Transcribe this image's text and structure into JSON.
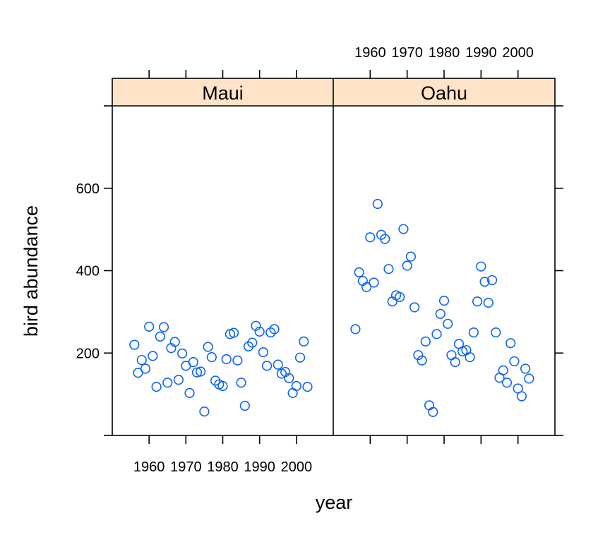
{
  "chart_data": {
    "type": "scatter",
    "xlabel": "year",
    "ylabel": "bird abundance",
    "xlim": [
      1950,
      2010
    ],
    "ylim": [
      0,
      800
    ],
    "x_ticks": [
      1960,
      1970,
      1980,
      1990,
      2000
    ],
    "y_ticks": [
      200,
      400,
      600
    ],
    "colors": {
      "point": "#0a64f0",
      "strip": "#ffe3c8",
      "frame": "#000000"
    },
    "panels": [
      {
        "name": "Maui",
        "points": [
          {
            "x": 1956,
            "y": 220
          },
          {
            "x": 1957,
            "y": 152
          },
          {
            "x": 1958,
            "y": 183
          },
          {
            "x": 1959,
            "y": 162
          },
          {
            "x": 1960,
            "y": 264
          },
          {
            "x": 1961,
            "y": 193
          },
          {
            "x": 1962,
            "y": 118
          },
          {
            "x": 1963,
            "y": 240
          },
          {
            "x": 1964,
            "y": 263
          },
          {
            "x": 1965,
            "y": 128
          },
          {
            "x": 1966,
            "y": 212
          },
          {
            "x": 1967,
            "y": 227
          },
          {
            "x": 1968,
            "y": 135
          },
          {
            "x": 1969,
            "y": 199
          },
          {
            "x": 1970,
            "y": 169
          },
          {
            "x": 1971,
            "y": 103
          },
          {
            "x": 1972,
            "y": 178
          },
          {
            "x": 1973,
            "y": 153
          },
          {
            "x": 1974,
            "y": 155
          },
          {
            "x": 1975,
            "y": 58
          },
          {
            "x": 1976,
            "y": 215
          },
          {
            "x": 1977,
            "y": 190
          },
          {
            "x": 1978,
            "y": 133
          },
          {
            "x": 1979,
            "y": 124
          },
          {
            "x": 1980,
            "y": 120
          },
          {
            "x": 1981,
            "y": 185
          },
          {
            "x": 1982,
            "y": 246
          },
          {
            "x": 1983,
            "y": 249
          },
          {
            "x": 1984,
            "y": 182
          },
          {
            "x": 1985,
            "y": 128
          },
          {
            "x": 1986,
            "y": 72
          },
          {
            "x": 1987,
            "y": 216
          },
          {
            "x": 1988,
            "y": 225
          },
          {
            "x": 1989,
            "y": 266
          },
          {
            "x": 1990,
            "y": 252
          },
          {
            "x": 1991,
            "y": 202
          },
          {
            "x": 1992,
            "y": 169
          },
          {
            "x": 1993,
            "y": 250
          },
          {
            "x": 1994,
            "y": 258
          },
          {
            "x": 1995,
            "y": 172
          },
          {
            "x": 1996,
            "y": 150
          },
          {
            "x": 1997,
            "y": 154
          },
          {
            "x": 1998,
            "y": 139
          },
          {
            "x": 1999,
            "y": 103
          },
          {
            "x": 2000,
            "y": 120
          },
          {
            "x": 2001,
            "y": 189
          },
          {
            "x": 2002,
            "y": 228
          },
          {
            "x": 2003,
            "y": 118
          }
        ]
      },
      {
        "name": "Oahu",
        "points": [
          {
            "x": 1956,
            "y": 258
          },
          {
            "x": 1957,
            "y": 396
          },
          {
            "x": 1958,
            "y": 375
          },
          {
            "x": 1959,
            "y": 360
          },
          {
            "x": 1960,
            "y": 481
          },
          {
            "x": 1961,
            "y": 371
          },
          {
            "x": 1962,
            "y": 562
          },
          {
            "x": 1963,
            "y": 487
          },
          {
            "x": 1964,
            "y": 477
          },
          {
            "x": 1965,
            "y": 404
          },
          {
            "x": 1966,
            "y": 325
          },
          {
            "x": 1967,
            "y": 340
          },
          {
            "x": 1968,
            "y": 336
          },
          {
            "x": 1969,
            "y": 501
          },
          {
            "x": 1970,
            "y": 412
          },
          {
            "x": 1971,
            "y": 434
          },
          {
            "x": 1972,
            "y": 311
          },
          {
            "x": 1973,
            "y": 195
          },
          {
            "x": 1974,
            "y": 182
          },
          {
            "x": 1975,
            "y": 228
          },
          {
            "x": 1976,
            "y": 73
          },
          {
            "x": 1977,
            "y": 57
          },
          {
            "x": 1978,
            "y": 246
          },
          {
            "x": 1979,
            "y": 295
          },
          {
            "x": 1980,
            "y": 327
          },
          {
            "x": 1981,
            "y": 271
          },
          {
            "x": 1982,
            "y": 195
          },
          {
            "x": 1983,
            "y": 178
          },
          {
            "x": 1984,
            "y": 222
          },
          {
            "x": 1985,
            "y": 204
          },
          {
            "x": 1986,
            "y": 207
          },
          {
            "x": 1987,
            "y": 190
          },
          {
            "x": 1988,
            "y": 250
          },
          {
            "x": 1989,
            "y": 325
          },
          {
            "x": 1990,
            "y": 410
          },
          {
            "x": 1991,
            "y": 373
          },
          {
            "x": 1992,
            "y": 322
          },
          {
            "x": 1993,
            "y": 377
          },
          {
            "x": 1994,
            "y": 250
          },
          {
            "x": 1995,
            "y": 140
          },
          {
            "x": 1996,
            "y": 158
          },
          {
            "x": 1997,
            "y": 128
          },
          {
            "x": 1998,
            "y": 224
          },
          {
            "x": 1999,
            "y": 180
          },
          {
            "x": 2000,
            "y": 114
          },
          {
            "x": 2001,
            "y": 95
          },
          {
            "x": 2002,
            "y": 162
          },
          {
            "x": 2003,
            "y": 138
          }
        ]
      }
    ]
  }
}
